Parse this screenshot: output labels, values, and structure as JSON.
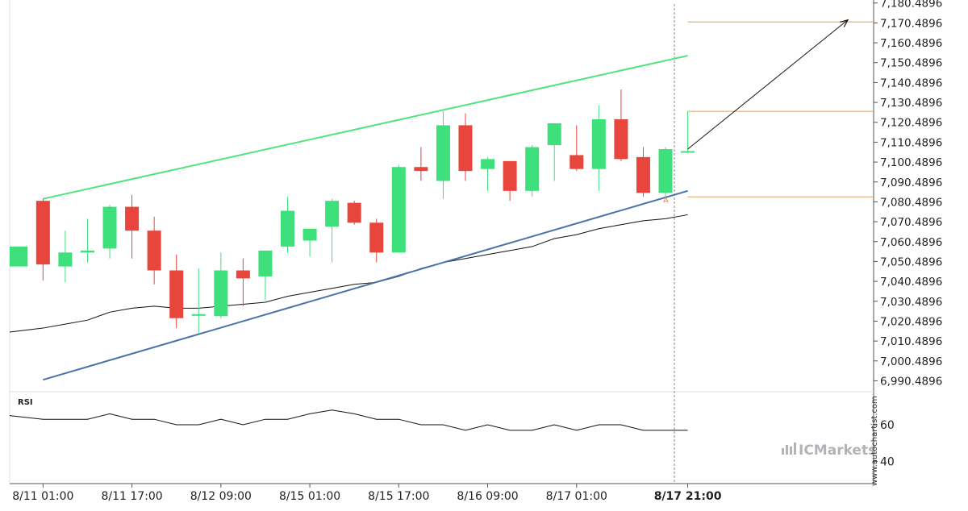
{
  "chart_data": {
    "type": "candlestick",
    "y_ticks": [
      "7,180.4896",
      "7,170.4896",
      "7,160.4896",
      "7,150.4896",
      "7,140.4896",
      "7,130.4896",
      "7,120.4896",
      "7,110.4896",
      "7,100.4896",
      "7,090.4896",
      "7,080.4896",
      "7,070.4896",
      "7,060.4896",
      "7,050.4896",
      "7,040.4896",
      "7,030.4896",
      "7,020.4896",
      "7,010.4896",
      "7,000.4896",
      "6,990.4896"
    ],
    "y_tick_values": [
      7180.4896,
      7170.4896,
      7160.4896,
      7150.4896,
      7140.4896,
      7130.4896,
      7120.4896,
      7110.4896,
      7100.4896,
      7090.4896,
      7080.4896,
      7070.4896,
      7060.4896,
      7050.4896,
      7040.4896,
      7030.4896,
      7020.4896,
      7010.4896,
      7000.4896,
      6990.4896
    ],
    "ylim": [
      6985,
      7182
    ],
    "x_ticks": [
      {
        "label": "8/11 01:00",
        "index": 1,
        "bold": false
      },
      {
        "label": "8/11 17:00",
        "index": 5,
        "bold": false
      },
      {
        "label": "8/12 09:00",
        "index": 9,
        "bold": false
      },
      {
        "label": "8/15 01:00",
        "index": 13,
        "bold": false
      },
      {
        "label": "8/15 17:00",
        "index": 17,
        "bold": false
      },
      {
        "label": "8/16 09:00",
        "index": 21,
        "bold": false
      },
      {
        "label": "8/17 01:00",
        "index": 25,
        "bold": false
      },
      {
        "label": "8/17 21:00",
        "index": 30,
        "bold": true
      }
    ],
    "candles": [
      {
        "o": 7048,
        "h": 7058,
        "l": 7048,
        "c": 7058
      },
      {
        "o": 7081,
        "h": 7082,
        "l": 7041,
        "c": 7049
      },
      {
        "o": 7048,
        "h": 7066,
        "l": 7040,
        "c": 7055
      },
      {
        "o": 7055,
        "h": 7072,
        "l": 7050,
        "c": 7056
      },
      {
        "o": 7057,
        "h": 7079,
        "l": 7052,
        "c": 7078
      },
      {
        "o": 7078,
        "h": 7084,
        "l": 7052,
        "c": 7066
      },
      {
        "o": 7066,
        "h": 7073,
        "l": 7039,
        "c": 7046
      },
      {
        "o": 7046,
        "h": 7054,
        "l": 7017,
        "c": 7022
      },
      {
        "o": 7024,
        "h": 7047,
        "l": 7014,
        "c": 7024
      },
      {
        "o": 7023,
        "h": 7055,
        "l": 7022,
        "c": 7046
      },
      {
        "o": 7046,
        "h": 7052,
        "l": 7028,
        "c": 7042
      },
      {
        "o": 7043,
        "h": 7056,
        "l": 7031,
        "c": 7056
      },
      {
        "o": 7058,
        "h": 7083,
        "l": 7055,
        "c": 7076
      },
      {
        "o": 7061,
        "h": 7067,
        "l": 7053,
        "c": 7067
      },
      {
        "o": 7068,
        "h": 7082,
        "l": 7050,
        "c": 7081
      },
      {
        "o": 7080,
        "h": 7081,
        "l": 7069,
        "c": 7070
      },
      {
        "o": 7070,
        "h": 7072,
        "l": 7050,
        "c": 7055
      },
      {
        "o": 7055,
        "h": 7099,
        "l": 7055,
        "c": 7098
      },
      {
        "o": 7098,
        "h": 7108,
        "l": 7091,
        "c": 7096
      },
      {
        "o": 7091,
        "h": 7126,
        "l": 7082,
        "c": 7119
      },
      {
        "o": 7119,
        "h": 7125,
        "l": 7091,
        "c": 7096
      },
      {
        "o": 7097,
        "h": 7103,
        "l": 7086,
        "c": 7102
      },
      {
        "o": 7101,
        "h": 7101,
        "l": 7081,
        "c": 7086
      },
      {
        "o": 7086,
        "h": 7109,
        "l": 7083,
        "c": 7108
      },
      {
        "o": 7109,
        "h": 7120,
        "l": 7091,
        "c": 7120
      },
      {
        "o": 7104,
        "h": 7119,
        "l": 7096,
        "c": 7097
      },
      {
        "o": 7097,
        "h": 7129,
        "l": 7086,
        "c": 7122
      },
      {
        "o": 7122,
        "h": 7137,
        "l": 7101,
        "c": 7102
      },
      {
        "o": 7103,
        "h": 7108,
        "l": 7083,
        "c": 7085
      },
      {
        "o": 7085,
        "h": 7108,
        "l": 7083,
        "c": 7107
      },
      {
        "o": 7106,
        "h": 7126,
        "l": 7106,
        "c": 7106
      }
    ],
    "moving_average": [
      7015,
      7017,
      7019,
      7021,
      7025,
      7027,
      7028,
      7027,
      7027,
      7028,
      7029,
      7030,
      7033,
      7035,
      7037,
      7039,
      7040,
      7043,
      7047,
      7050,
      7052,
      7054,
      7056,
      7058,
      7062,
      7064,
      7067,
      7069,
      7071,
      7072,
      7074
    ],
    "channel_upper": {
      "from_index": 1,
      "from_value": 7082,
      "to_index": 30,
      "to_value": 7154
    },
    "channel_lower": {
      "from_index": 1,
      "from_value": 6991,
      "to_index": 30,
      "to_value": 7086
    },
    "horizontal_levels": [
      7171,
      7126,
      7083
    ],
    "projection_arrow": {
      "from_index": 30,
      "from_value": 7107,
      "to_index": 37.2,
      "to_value": 7172
    },
    "pattern_label": "A",
    "pattern_label_index": 29,
    "pattern_label_value": 7080,
    "rsi": {
      "label": "RSI",
      "ticks": [
        "60",
        "40"
      ],
      "tick_values": [
        60,
        40
      ],
      "ylim": [
        28,
        78
      ],
      "values": [
        65,
        63,
        63,
        63,
        66,
        63,
        63,
        60,
        60,
        63,
        60,
        63,
        63,
        66,
        68,
        66,
        63,
        63,
        60,
        60,
        57,
        60,
        57,
        57,
        60,
        57,
        60,
        60,
        57,
        57,
        57
      ]
    },
    "colors": {
      "bull": "#3de07a",
      "bear": "#e8453c",
      "channel_upper": "#4fe57a",
      "channel_lower": "#4a72a8",
      "level": "#d9a067",
      "ma": "#111111",
      "arrow": "#111111"
    }
  },
  "branding": {
    "brand": "ICMarkets",
    "watermark": "www.autochartist.com"
  }
}
